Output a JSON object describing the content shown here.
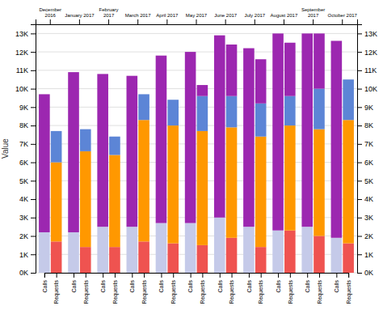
{
  "chart_data": {
    "type": "bar",
    "stacked": true,
    "grid": true,
    "ylabel": "Value",
    "categories": [
      "Calls",
      "Requests",
      "Calls",
      "Requests",
      "Calls",
      "Requests",
      "Calls",
      "Requests",
      "Calls",
      "Requests",
      "Calls",
      "Requests",
      "Calls",
      "Requests",
      "Calls",
      "Requests",
      "Calls",
      "Requests",
      "Calls",
      "Requests",
      "Calls",
      "Requests"
    ],
    "groups": [
      "December\n2016",
      "January 2017",
      "February\n2017",
      "March 2017",
      "April 2017",
      "May 2017",
      "June 2017",
      "July 2017",
      "August 2017",
      "September\n2017",
      "October 2017"
    ],
    "series": [
      {
        "color": "#c5cae9",
        "values": [
          2200,
          0,
          2200,
          0,
          2500,
          0,
          2500,
          0,
          2700,
          0,
          2700,
          0,
          3000,
          0,
          2500,
          0,
          2300,
          0,
          2500,
          0,
          1900,
          0
        ]
      },
      {
        "color": "#ef5350",
        "values": [
          0,
          1700,
          0,
          1400,
          0,
          1400,
          0,
          1700,
          0,
          1600,
          0,
          1500,
          0,
          1900,
          0,
          1400,
          0,
          2300,
          0,
          2000,
          0,
          1600
        ]
      },
      {
        "color": "#ff9800",
        "values": [
          0,
          4300,
          0,
          5200,
          0,
          5000,
          0,
          6600,
          0,
          6400,
          0,
          6200,
          0,
          6000,
          0,
          6000,
          0,
          5700,
          0,
          5800,
          0,
          6700
        ]
      },
      {
        "color": "#5c85d6",
        "values": [
          0,
          1700,
          0,
          1200,
          0,
          1000,
          0,
          1400,
          0,
          1400,
          0,
          1900,
          0,
          1700,
          0,
          1800,
          0,
          1600,
          0,
          2200,
          0,
          2200
        ]
      },
      {
        "color": "#9c27b0",
        "values": [
          7500,
          0,
          8700,
          0,
          8300,
          0,
          8200,
          0,
          9100,
          0,
          9300,
          600,
          9900,
          2800,
          9700,
          2400,
          10700,
          2900,
          10500,
          3000,
          10700,
          0
        ]
      }
    ],
    "ylim": [
      0,
      13500
    ],
    "yticks": [
      {
        "value": 0,
        "label": "0K"
      },
      {
        "value": 1000,
        "label": "1K"
      },
      {
        "value": 2000,
        "label": "2K"
      },
      {
        "value": 3000,
        "label": "3K"
      },
      {
        "value": 4000,
        "label": "4K"
      },
      {
        "value": 5000,
        "label": "5K"
      },
      {
        "value": 6000,
        "label": "6K"
      },
      {
        "value": 7000,
        "label": "7K"
      },
      {
        "value": 8000,
        "label": "8K"
      },
      {
        "value": 9000,
        "label": "9K"
      },
      {
        "value": 10000,
        "label": "10K"
      },
      {
        "value": 11000,
        "label": "11K"
      },
      {
        "value": 12000,
        "label": "12K"
      },
      {
        "value": 13000,
        "label": "13K"
      }
    ]
  }
}
